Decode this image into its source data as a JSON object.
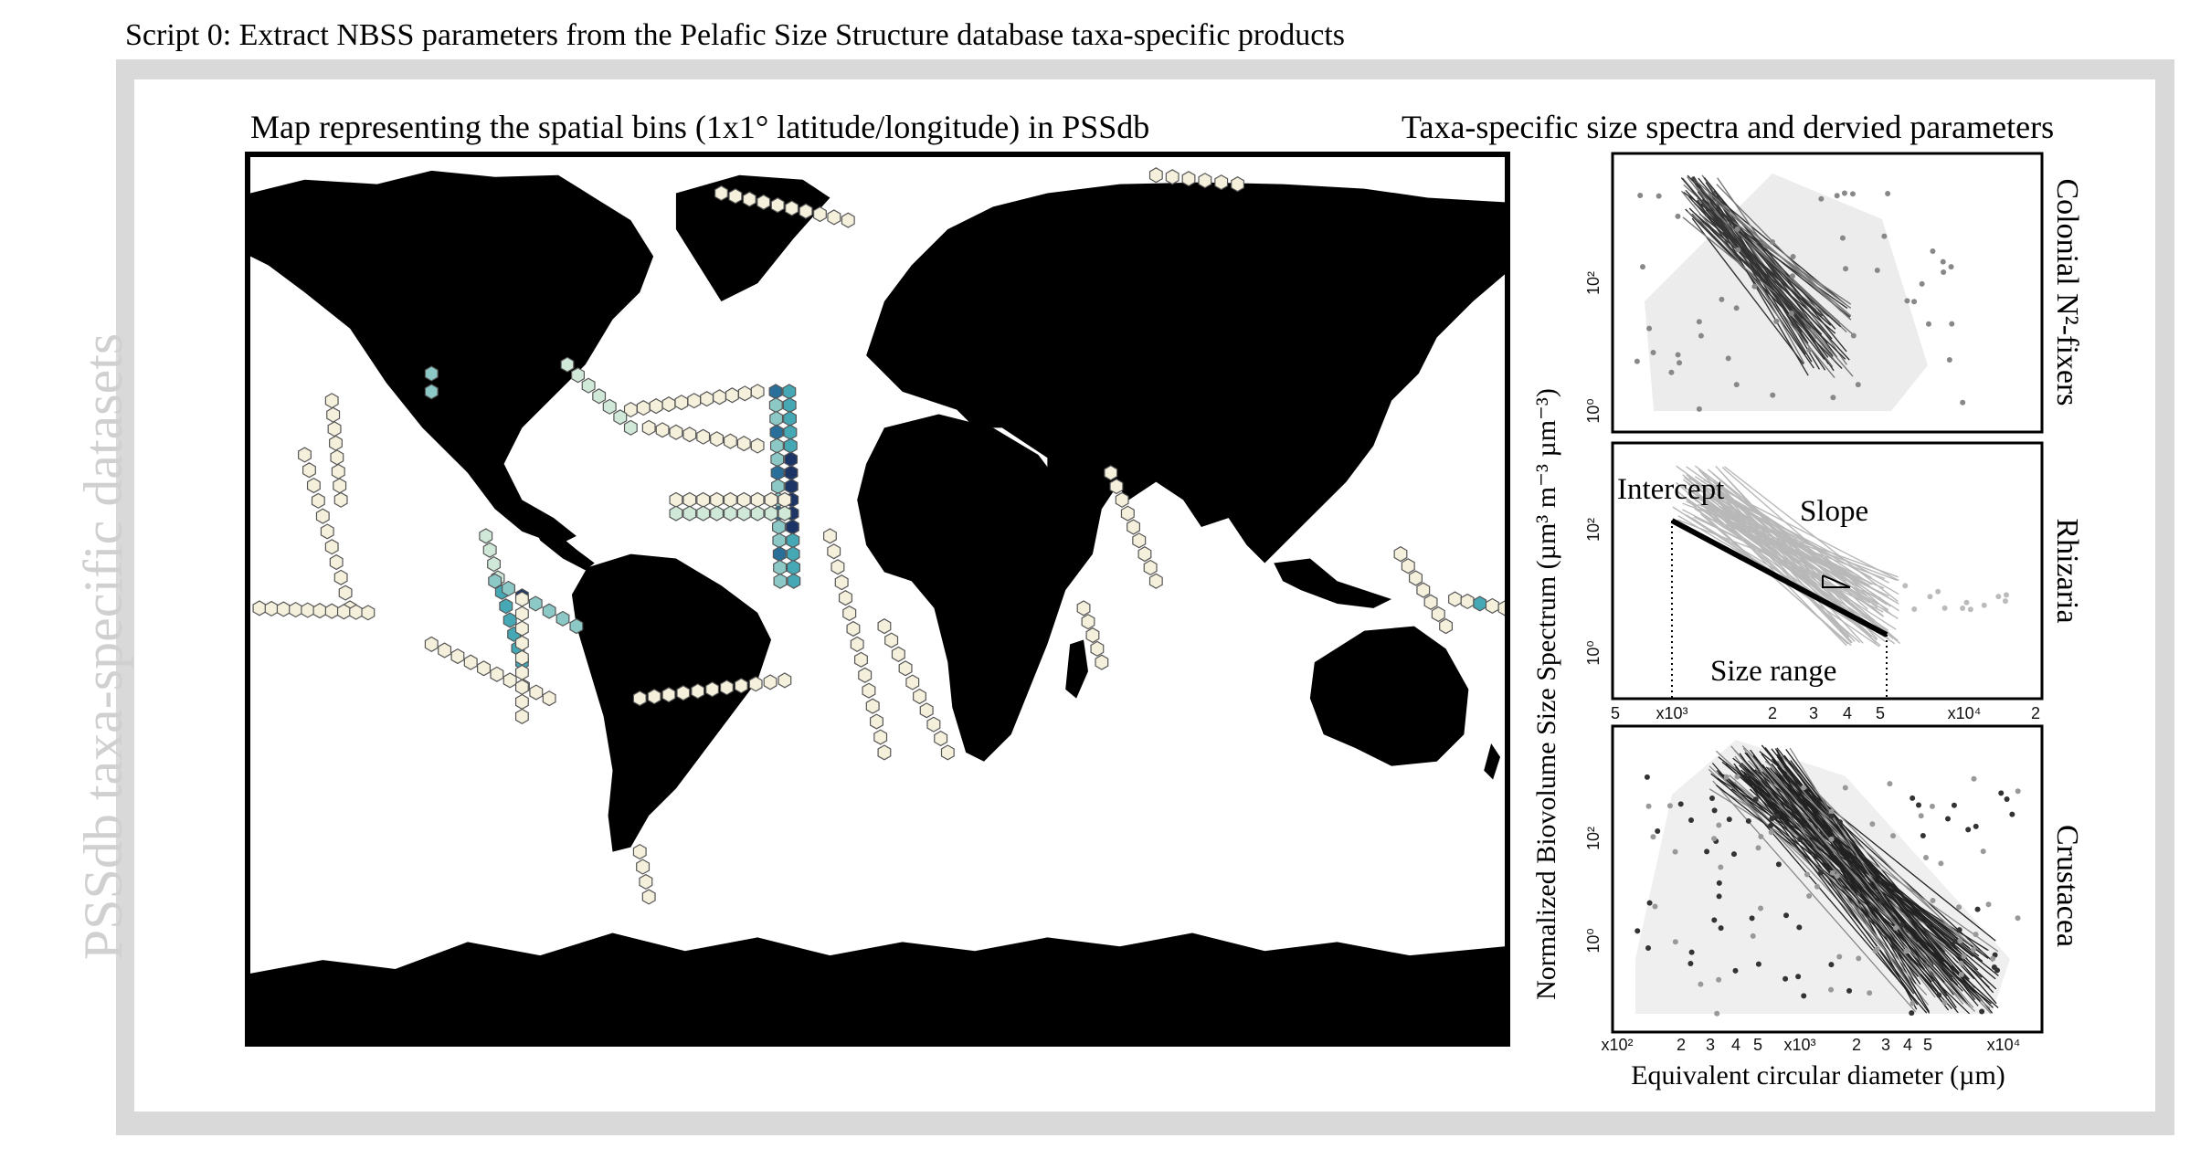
{
  "script_title": "Script 0: Extract NBSS parameters from the Pelafic Size Structure database taxa-specific products",
  "side_label": "PSSdb taxa-specific datasets",
  "map": {
    "title": "Map representing the spatial bins (1x1° latitude/longitude) in PSSdb",
    "land_color": "#000000",
    "ocean_color": "#ffffff",
    "bin_colors": [
      "#f4f0dc",
      "#cfe8d8",
      "#8cc9c6",
      "#47a8b5",
      "#2a6f9a",
      "#1d3566"
    ]
  },
  "spectra": {
    "title": "Taxa-specific size spectra and dervied parameters",
    "y_axis_title": "Normalized Biovolume Size Spectrum (µm³ m⁻³ µm⁻³)",
    "x_axis_title": "Equivalent circular diameter (µm)",
    "facets": [
      {
        "label": "Colonial N²-fixers",
        "y_ticks": [
          "10²",
          "10⁰"
        ]
      },
      {
        "label": "Rhizaria",
        "y_ticks": [
          "10²",
          "10⁰"
        ],
        "x_ticks": [
          "5",
          "x10³",
          "2",
          "3",
          "4",
          "5",
          "x10⁴",
          "2"
        ],
        "annotations": {
          "intercept": "Intercept",
          "slope": "Slope",
          "size_range": "Size range"
        }
      },
      {
        "label": "Crustacea",
        "y_ticks": [
          "10²",
          "10⁰"
        ],
        "x_ticks": [
          "x10²",
          "2",
          "3",
          "4",
          "5",
          "x10³",
          "2",
          "3",
          "4",
          "5",
          "x10⁴"
        ]
      }
    ]
  }
}
